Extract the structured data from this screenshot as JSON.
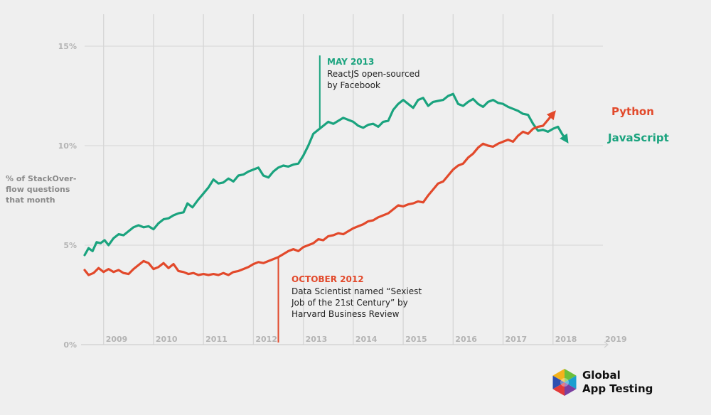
{
  "chart_data": {
    "type": "line",
    "ylabel": "% of StackOver-flow questions that month",
    "ylabel_lines": [
      "% of StackOver-",
      "flow questions",
      "that month"
    ],
    "ylim": [
      0,
      16
    ],
    "xlim": [
      2008.62,
      2019.0
    ],
    "y_ticks": [
      {
        "value": 0,
        "label": "0%"
      },
      {
        "value": 5,
        "label": "5%"
      },
      {
        "value": 10,
        "label": "10%"
      },
      {
        "value": 15,
        "label": "15%"
      }
    ],
    "x_ticks": [
      {
        "value": 2009,
        "label": "2009"
      },
      {
        "value": 2010,
        "label": "2010"
      },
      {
        "value": 2011,
        "label": "2011"
      },
      {
        "value": 2012,
        "label": "2012"
      },
      {
        "value": 2013,
        "label": "2013"
      },
      {
        "value": 2014,
        "label": "2014"
      },
      {
        "value": 2015,
        "label": "2015"
      },
      {
        "value": 2016,
        "label": "2016"
      },
      {
        "value": 2017,
        "label": "2017"
      },
      {
        "value": 2018,
        "label": "2018"
      },
      {
        "value": 2019,
        "label": "2019"
      }
    ],
    "grid": true,
    "series": [
      {
        "name": "JavaScript",
        "color": "#1aa37e",
        "points": [
          [
            2008.62,
            4.5
          ],
          [
            2008.7,
            4.85
          ],
          [
            2008.78,
            4.7
          ],
          [
            2008.86,
            5.15
          ],
          [
            2008.94,
            5.1
          ],
          [
            2009.02,
            5.25
          ],
          [
            2009.1,
            5.0
          ],
          [
            2009.2,
            5.35
          ],
          [
            2009.3,
            5.55
          ],
          [
            2009.4,
            5.5
          ],
          [
            2009.5,
            5.7
          ],
          [
            2009.6,
            5.9
          ],
          [
            2009.7,
            6.0
          ],
          [
            2009.8,
            5.9
          ],
          [
            2009.9,
            5.95
          ],
          [
            2010.0,
            5.8
          ],
          [
            2010.1,
            6.1
          ],
          [
            2010.2,
            6.3
          ],
          [
            2010.3,
            6.35
          ],
          [
            2010.4,
            6.5
          ],
          [
            2010.5,
            6.6
          ],
          [
            2010.6,
            6.65
          ],
          [
            2010.68,
            7.1
          ],
          [
            2010.78,
            6.9
          ],
          [
            2010.9,
            7.3
          ],
          [
            2011.0,
            7.6
          ],
          [
            2011.1,
            7.9
          ],
          [
            2011.2,
            8.3
          ],
          [
            2011.3,
            8.1
          ],
          [
            2011.4,
            8.15
          ],
          [
            2011.5,
            8.35
          ],
          [
            2011.6,
            8.2
          ],
          [
            2011.7,
            8.5
          ],
          [
            2011.8,
            8.55
          ],
          [
            2011.9,
            8.7
          ],
          [
            2012.0,
            8.8
          ],
          [
            2012.1,
            8.9
          ],
          [
            2012.2,
            8.5
          ],
          [
            2012.3,
            8.4
          ],
          [
            2012.4,
            8.7
          ],
          [
            2012.5,
            8.9
          ],
          [
            2012.6,
            9.0
          ],
          [
            2012.7,
            8.95
          ],
          [
            2012.8,
            9.05
          ],
          [
            2012.9,
            9.1
          ],
          [
            2013.0,
            9.5
          ],
          [
            2013.1,
            10.0
          ],
          [
            2013.2,
            10.6
          ],
          [
            2013.3,
            10.8
          ],
          [
            2013.4,
            11.0
          ],
          [
            2013.5,
            11.2
          ],
          [
            2013.6,
            11.1
          ],
          [
            2013.7,
            11.25
          ],
          [
            2013.8,
            11.4
          ],
          [
            2013.9,
            11.3
          ],
          [
            2014.0,
            11.2
          ],
          [
            2014.1,
            11.0
          ],
          [
            2014.2,
            10.9
          ],
          [
            2014.3,
            11.05
          ],
          [
            2014.4,
            11.1
          ],
          [
            2014.5,
            10.95
          ],
          [
            2014.6,
            11.2
          ],
          [
            2014.7,
            11.25
          ],
          [
            2014.8,
            11.8
          ],
          [
            2014.9,
            12.1
          ],
          [
            2015.0,
            12.3
          ],
          [
            2015.1,
            12.1
          ],
          [
            2015.2,
            11.9
          ],
          [
            2015.3,
            12.3
          ],
          [
            2015.4,
            12.4
          ],
          [
            2015.5,
            12.0
          ],
          [
            2015.6,
            12.2
          ],
          [
            2015.7,
            12.25
          ],
          [
            2015.8,
            12.3
          ],
          [
            2015.9,
            12.5
          ],
          [
            2016.0,
            12.6
          ],
          [
            2016.1,
            12.1
          ],
          [
            2016.2,
            12.0
          ],
          [
            2016.3,
            12.2
          ],
          [
            2016.4,
            12.35
          ],
          [
            2016.5,
            12.1
          ],
          [
            2016.6,
            11.95
          ],
          [
            2016.7,
            12.2
          ],
          [
            2016.8,
            12.3
          ],
          [
            2016.9,
            12.15
          ],
          [
            2017.0,
            12.1
          ],
          [
            2017.1,
            11.95
          ],
          [
            2017.2,
            11.85
          ],
          [
            2017.3,
            11.75
          ],
          [
            2017.4,
            11.6
          ],
          [
            2017.5,
            11.55
          ],
          [
            2017.6,
            11.1
          ],
          [
            2017.7,
            10.75
          ],
          [
            2017.8,
            10.8
          ],
          [
            2017.9,
            10.7
          ],
          [
            2018.0,
            10.85
          ],
          [
            2018.1,
            10.95
          ],
          [
            2018.18,
            10.6
          ],
          [
            2018.26,
            10.3
          ]
        ]
      },
      {
        "name": "Python",
        "color": "#e2492b",
        "points": [
          [
            2008.62,
            3.75
          ],
          [
            2008.7,
            3.5
          ],
          [
            2008.8,
            3.6
          ],
          [
            2008.9,
            3.85
          ],
          [
            2009.0,
            3.65
          ],
          [
            2009.1,
            3.8
          ],
          [
            2009.2,
            3.65
          ],
          [
            2009.3,
            3.75
          ],
          [
            2009.4,
            3.6
          ],
          [
            2009.5,
            3.55
          ],
          [
            2009.6,
            3.8
          ],
          [
            2009.7,
            4.0
          ],
          [
            2009.8,
            4.2
          ],
          [
            2009.9,
            4.1
          ],
          [
            2010.0,
            3.8
          ],
          [
            2010.1,
            3.9
          ],
          [
            2010.2,
            4.1
          ],
          [
            2010.3,
            3.85
          ],
          [
            2010.4,
            4.05
          ],
          [
            2010.5,
            3.7
          ],
          [
            2010.6,
            3.65
          ],
          [
            2010.7,
            3.55
          ],
          [
            2010.8,
            3.6
          ],
          [
            2010.9,
            3.5
          ],
          [
            2011.0,
            3.55
          ],
          [
            2011.1,
            3.5
          ],
          [
            2011.2,
            3.55
          ],
          [
            2011.3,
            3.5
          ],
          [
            2011.4,
            3.6
          ],
          [
            2011.5,
            3.5
          ],
          [
            2011.6,
            3.65
          ],
          [
            2011.7,
            3.7
          ],
          [
            2011.8,
            3.8
          ],
          [
            2011.9,
            3.9
          ],
          [
            2012.0,
            4.05
          ],
          [
            2012.1,
            4.15
          ],
          [
            2012.2,
            4.1
          ],
          [
            2012.3,
            4.2
          ],
          [
            2012.4,
            4.3
          ],
          [
            2012.5,
            4.4
          ],
          [
            2012.6,
            4.55
          ],
          [
            2012.7,
            4.7
          ],
          [
            2012.8,
            4.8
          ],
          [
            2012.9,
            4.7
          ],
          [
            2013.0,
            4.9
          ],
          [
            2013.1,
            5.0
          ],
          [
            2013.2,
            5.1
          ],
          [
            2013.3,
            5.3
          ],
          [
            2013.4,
            5.25
          ],
          [
            2013.5,
            5.45
          ],
          [
            2013.6,
            5.5
          ],
          [
            2013.7,
            5.6
          ],
          [
            2013.8,
            5.55
          ],
          [
            2013.9,
            5.7
          ],
          [
            2014.0,
            5.85
          ],
          [
            2014.1,
            5.95
          ],
          [
            2014.2,
            6.05
          ],
          [
            2014.3,
            6.2
          ],
          [
            2014.4,
            6.25
          ],
          [
            2014.5,
            6.4
          ],
          [
            2014.6,
            6.5
          ],
          [
            2014.7,
            6.6
          ],
          [
            2014.8,
            6.8
          ],
          [
            2014.9,
            7.0
          ],
          [
            2015.0,
            6.95
          ],
          [
            2015.1,
            7.05
          ],
          [
            2015.2,
            7.1
          ],
          [
            2015.3,
            7.2
          ],
          [
            2015.4,
            7.15
          ],
          [
            2015.5,
            7.5
          ],
          [
            2015.6,
            7.8
          ],
          [
            2015.7,
            8.1
          ],
          [
            2015.8,
            8.2
          ],
          [
            2015.9,
            8.5
          ],
          [
            2016.0,
            8.8
          ],
          [
            2016.1,
            9.0
          ],
          [
            2016.2,
            9.1
          ],
          [
            2016.3,
            9.4
          ],
          [
            2016.4,
            9.6
          ],
          [
            2016.5,
            9.9
          ],
          [
            2016.6,
            10.1
          ],
          [
            2016.7,
            10.0
          ],
          [
            2016.8,
            9.95
          ],
          [
            2016.9,
            10.1
          ],
          [
            2017.0,
            10.2
          ],
          [
            2017.1,
            10.3
          ],
          [
            2017.2,
            10.2
          ],
          [
            2017.3,
            10.5
          ],
          [
            2017.4,
            10.7
          ],
          [
            2017.5,
            10.6
          ],
          [
            2017.6,
            10.85
          ],
          [
            2017.7,
            10.95
          ],
          [
            2017.8,
            11.0
          ],
          [
            2017.9,
            11.3
          ],
          [
            2018.0,
            11.6
          ]
        ]
      }
    ],
    "series_labels": {
      "python": "Python",
      "javascript": "JavaScript"
    },
    "annotations": [
      {
        "id": "may2013",
        "title": "MAY 2013",
        "lines": [
          "ReactJS open-sourced",
          "by Facebook"
        ],
        "x": 2013.33,
        "color": "#1aa37e"
      },
      {
        "id": "oct2012",
        "title": "OCTOBER 2012",
        "lines": [
          "Data Scientist named “Sexiest",
          "Job of the 21st Century” by",
          "Harvard Business Review"
        ],
        "x": 2012.5,
        "color": "#e2492b"
      }
    ]
  },
  "logo": {
    "line1": "Global",
    "line2": "App Testing"
  },
  "colors": {
    "background": "#efefef",
    "grid": "#d6d6d6",
    "javascript": "#1aa37e",
    "python": "#e2492b"
  }
}
